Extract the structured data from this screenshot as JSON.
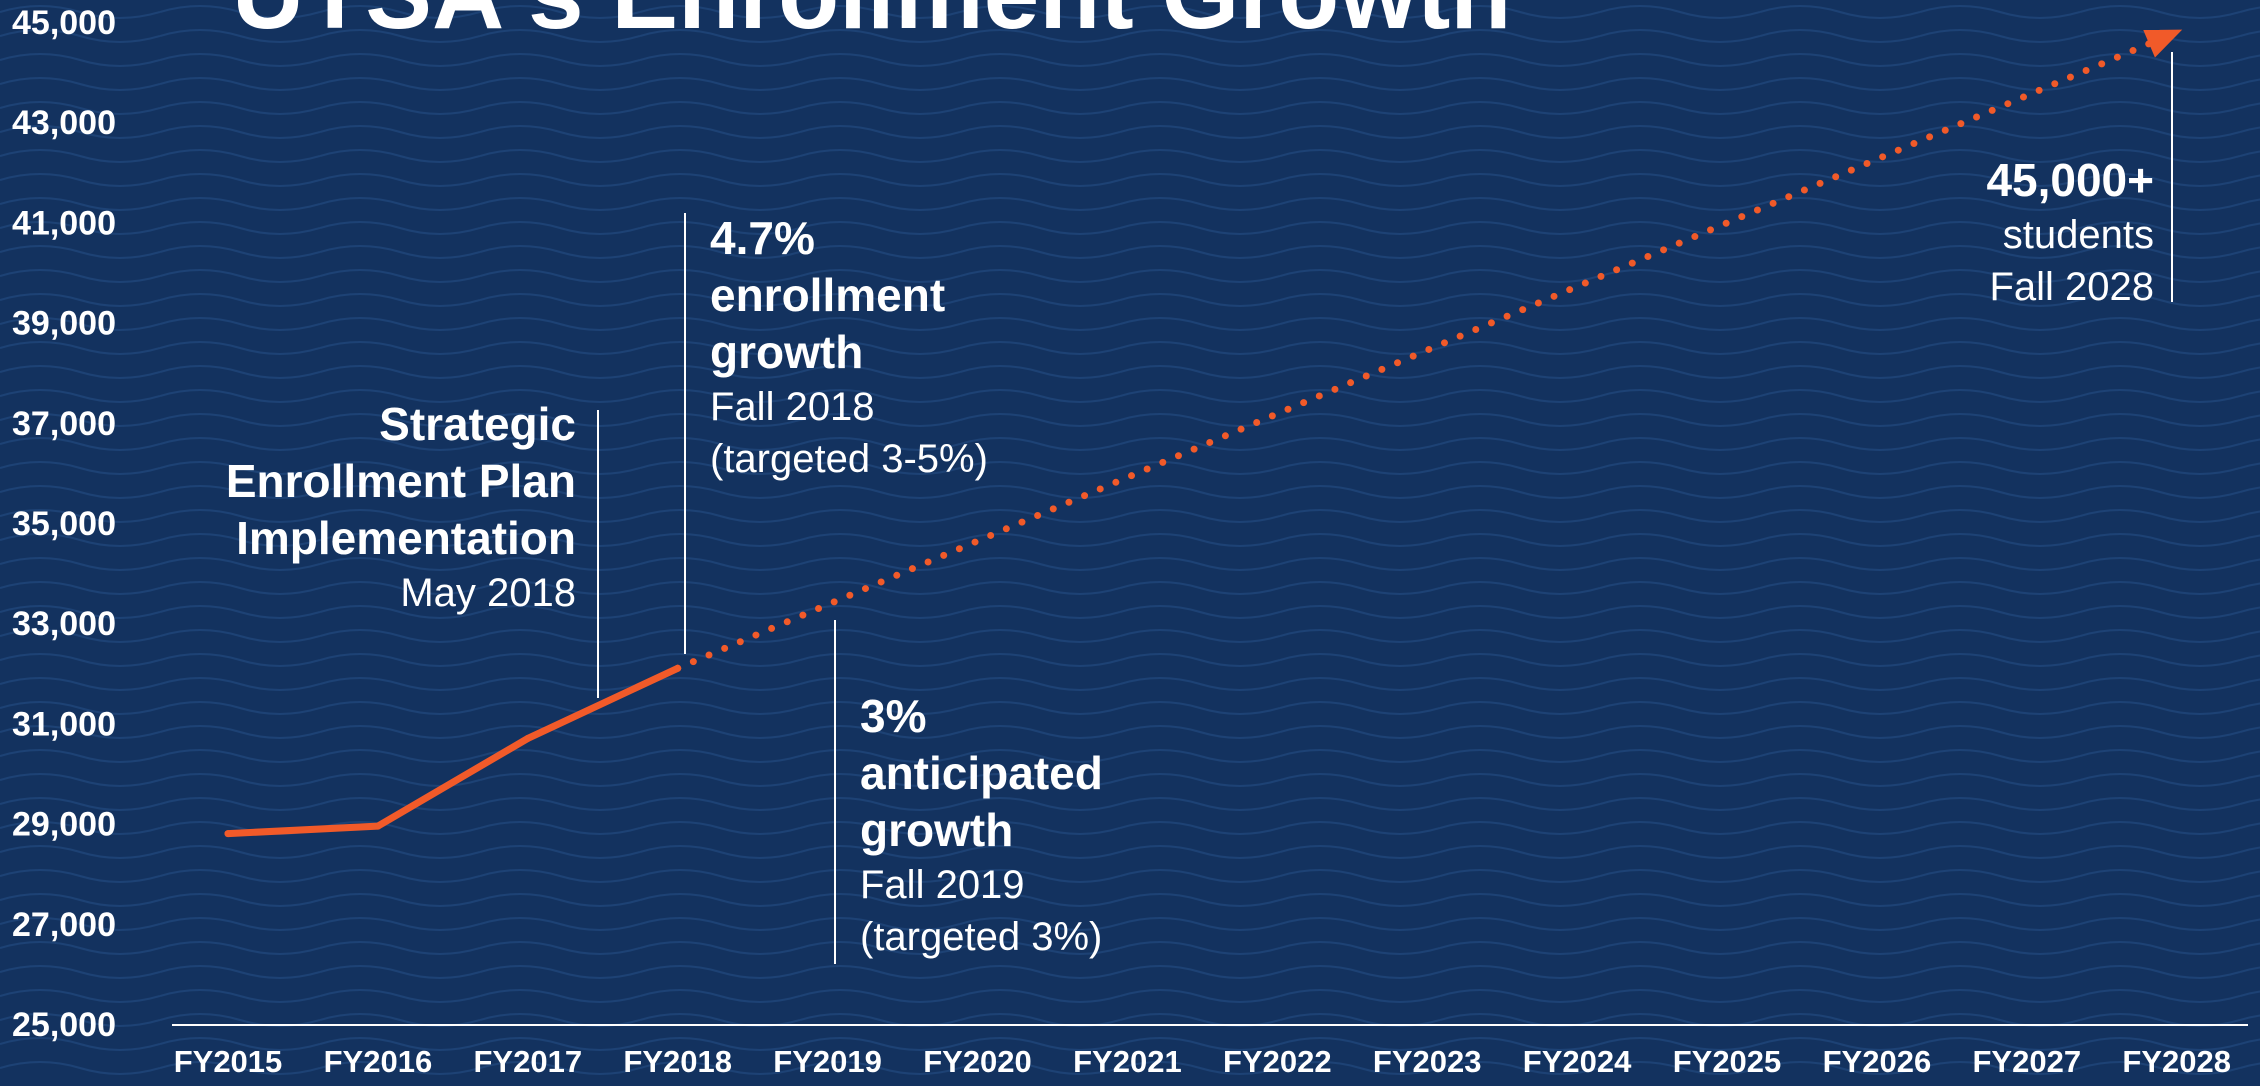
{
  "chart_data": {
    "type": "line",
    "title": "UTSA's Enrollment Growth",
    "xlabel": "",
    "ylabel": "",
    "categories": [
      "FY2015",
      "FY2016",
      "FY2017",
      "FY2018",
      "FY2019",
      "FY2020",
      "FY2021",
      "FY2022",
      "FY2023",
      "FY2024",
      "FY2025",
      "FY2026",
      "FY2027",
      "FY2028"
    ],
    "ylim": [
      25000,
      45000
    ],
    "yticks": [
      "25,000",
      "27,000",
      "29,000",
      "31,000",
      "33,000",
      "35,000",
      "37,000",
      "39,000",
      "41,000",
      "43,000",
      "45,000"
    ],
    "grid": false,
    "series": [
      {
        "style": "solid",
        "points": [
          {
            "x": "FY2015",
            "y": 28800
          },
          {
            "x": "FY2016",
            "y": 28950
          },
          {
            "x": "FY2017",
            "y": 30700
          },
          {
            "x": "FY2018",
            "y": 32100
          }
        ]
      },
      {
        "style": "dotted",
        "points": [
          {
            "x": "FY2018",
            "y": 32100
          },
          {
            "x": "FY2028",
            "y": 44800
          }
        ]
      }
    ],
    "annotations": [
      {
        "id": "strategic-plan",
        "lines": [
          {
            "text": "Strategic",
            "bold": true
          },
          {
            "text": "Enrollment Plan",
            "bold": true
          },
          {
            "text": "Implementation",
            "bold": true
          },
          {
            "text": "May 2018",
            "bold": false
          }
        ]
      },
      {
        "id": "growth-2018",
        "lines": [
          {
            "text": "4.7%",
            "bold": true
          },
          {
            "text": "enrollment",
            "bold": true
          },
          {
            "text": "growth",
            "bold": true
          },
          {
            "text": "Fall 2018",
            "bold": false
          },
          {
            "text": "(targeted 3-5%)",
            "bold": false
          }
        ]
      },
      {
        "id": "growth-2019",
        "lines": [
          {
            "text": "3%",
            "bold": true
          },
          {
            "text": "anticipated",
            "bold": true
          },
          {
            "text": "growth",
            "bold": true
          },
          {
            "text": "Fall 2019",
            "bold": false
          },
          {
            "text": "(targeted 3%)",
            "bold": false
          }
        ]
      },
      {
        "id": "target-2028",
        "lines": [
          {
            "text": "45,000+",
            "bold": true
          },
          {
            "text": "students",
            "bold": false
          },
          {
            "text": "Fall 2028",
            "bold": false
          }
        ]
      }
    ]
  },
  "colors": {
    "background": "#13325f",
    "wave": "#1d4275",
    "line": "#f15a29",
    "text": "#ffffff",
    "axis": "#ffffff"
  }
}
